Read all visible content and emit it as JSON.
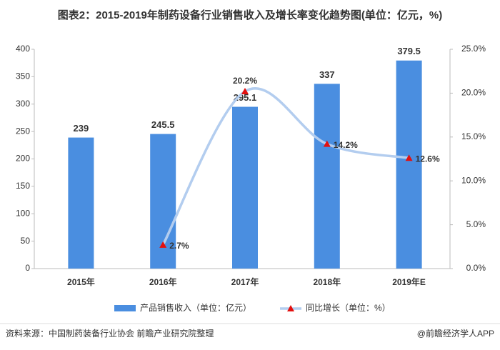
{
  "chart_data": {
    "type": "bar",
    "title": "图表2：2015-2019年制药设备行业销售收入及增长率变化趋势图(单位：亿元，%)",
    "categories": [
      "2015年",
      "2016年",
      "2017年",
      "2018年",
      "2019年E"
    ],
    "series": [
      {
        "name": "产品销售收入（单位：亿元）",
        "type": "bar",
        "color": "#4a8ee0",
        "values": [
          239,
          245.5,
          295.1,
          337,
          379.5
        ]
      },
      {
        "name": "同比增长（单位：%）",
        "type": "line",
        "axis": "y2",
        "color": "#b3cdef",
        "marker_color": "#e3100f",
        "values": [
          null,
          2.7,
          20.2,
          14.2,
          12.6
        ],
        "value_labels": [
          null,
          "2.7%",
          "20.2%",
          "14.2%",
          "12.6%"
        ]
      }
    ],
    "ylim": [
      0,
      400
    ],
    "yticks": [
      0,
      50,
      100,
      150,
      200,
      250,
      300,
      350,
      400
    ],
    "y2lim": [
      0,
      25
    ],
    "y2ticks": [
      {
        "value": 0,
        "label": "0.0%"
      },
      {
        "value": 5,
        "label": "5.0%"
      },
      {
        "value": 10,
        "label": "10.0%"
      },
      {
        "value": 15,
        "label": "15.0%"
      },
      {
        "value": 20,
        "label": "20.0%"
      },
      {
        "value": 25,
        "label": "25.0%"
      }
    ],
    "source": "资料来源：中国制药装备行业协会 前瞻产业研究院整理",
    "credit": "@前瞻经济学人APP"
  }
}
